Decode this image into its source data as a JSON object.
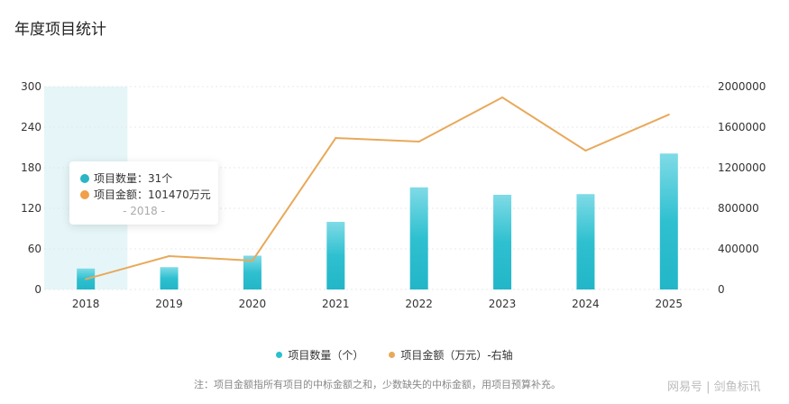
{
  "title": "年度项目统计",
  "chart_data": {
    "type": "bar+line",
    "categories": [
      "2018",
      "2019",
      "2020",
      "2021",
      "2022",
      "2023",
      "2024",
      "2025"
    ],
    "series": [
      {
        "name": "项目数量（个）",
        "type": "bar",
        "axis": "left",
        "color": "#2bbfcf",
        "values": [
          31,
          33,
          50,
          100,
          151,
          140,
          141,
          201
        ]
      },
      {
        "name": "项目金额（万元）-右轴",
        "type": "line",
        "axis": "right",
        "color": "#e8a95a",
        "values": [
          101470,
          329000,
          284000,
          1493000,
          1458000,
          1893000,
          1369000,
          1724000
        ]
      }
    ],
    "y_left": {
      "range": [
        0,
        300
      ],
      "ticks": [
        "0",
        "60",
        "120",
        "180",
        "240",
        "300"
      ]
    },
    "y_right": {
      "range": [
        0,
        2000000
      ],
      "ticks": [
        "0",
        "400000",
        "800000",
        "1200000",
        "1600000",
        "2000000"
      ]
    },
    "grid": true,
    "legend": "bottom",
    "highlighted_category": "2018"
  },
  "tooltip": {
    "count_label": "项目数量：31个",
    "amount_label": "项目金额：101470万元",
    "date": "- 2018 -"
  },
  "note": "注：项目金额指所有项目的中标金额之和，少数缺失的中标金额，用项目预算补充。",
  "watermark": "网易号 | 剑鱼标讯"
}
